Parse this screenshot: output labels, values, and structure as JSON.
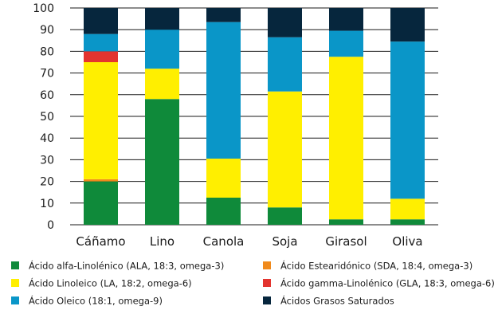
{
  "chart_data": {
    "type": "bar",
    "stacked": true,
    "categories": [
      "Cáñamo",
      "Lino",
      "Canola",
      "Soja",
      "Girasol",
      "Oliva"
    ],
    "ylim": [
      0,
      100
    ],
    "yticks": [
      0,
      10,
      20,
      30,
      40,
      50,
      60,
      70,
      80,
      90,
      100
    ],
    "grid": true,
    "legend_position": "bottom",
    "series": [
      {
        "name": "Ácido alfa-Linolénico (ALA, 18:3, omega-3)",
        "color": "#0f8a3a",
        "values": [
          20,
          58,
          12.5,
          8,
          2.5,
          2.5
        ]
      },
      {
        "name": "Ácido Estearidónico (SDA, 18:4, omega-3)",
        "color": "#f08a1c",
        "values": [
          1,
          0,
          0,
          0,
          0,
          0
        ]
      },
      {
        "name": "Ácido Linoleico (LA, 18:2, omega-6)",
        "color": "#ffef00",
        "values": [
          54,
          14,
          18,
          53.5,
          75,
          9.5
        ]
      },
      {
        "name": "Ácido gamma-Linolénico (GLA, 18:3, omega-6)",
        "color": "#e3342f",
        "values": [
          5,
          0,
          0,
          0,
          0,
          0
        ]
      },
      {
        "name": "Ácido Oleico (18:1, omega-9)",
        "color": "#0a96c8",
        "values": [
          8,
          18,
          63,
          25,
          12,
          72.5
        ]
      },
      {
        "name": "Ácidos Grasos Saturados",
        "color": "#06263d",
        "values": [
          12,
          10,
          6.5,
          13.5,
          10.5,
          15.5
        ]
      }
    ]
  }
}
